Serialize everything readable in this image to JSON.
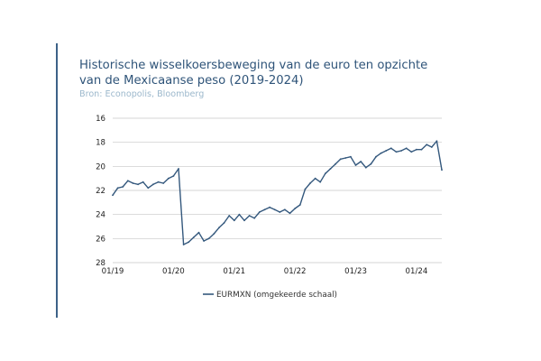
{
  "page": {
    "title_lines": [
      "Historische wisselkoersbeweging van de euro ten opzichte",
      "van de Mexicaanse peso (2019-2024)"
    ],
    "source": "Bron: Econopolis, Bloomberg"
  },
  "colors": {
    "accent_bar": "#3d6288",
    "title": "#2f5479",
    "source": "#9cb8cc",
    "series_line": "#34587d",
    "grid": "#c8c8c8"
  },
  "chart_data": {
    "type": "line",
    "y_inverted": true,
    "ylim": [
      16,
      28
    ],
    "y_ticks": [
      16,
      18,
      20,
      22,
      24,
      26,
      28
    ],
    "x_ticks": [
      "01/19",
      "01/20",
      "01/21",
      "01/22",
      "01/23",
      "01/24"
    ],
    "x_range": [
      "2019-01",
      "2024-06"
    ],
    "grid": "horizontal",
    "legend": {
      "position": "bottom",
      "label": "EURMXN (omgekeerde schaal)"
    },
    "series": [
      {
        "name": "EURMXN (omgekeerde schaal)",
        "x": [
          "2019-01",
          "2019-02",
          "2019-03",
          "2019-04",
          "2019-05",
          "2019-06",
          "2019-07",
          "2019-08",
          "2019-09",
          "2019-10",
          "2019-11",
          "2019-12",
          "2020-01",
          "2020-02",
          "2020-03",
          "2020-04",
          "2020-05",
          "2020-06",
          "2020-07",
          "2020-08",
          "2020-09",
          "2020-10",
          "2020-11",
          "2020-12",
          "2021-01",
          "2021-02",
          "2021-03",
          "2021-04",
          "2021-05",
          "2021-06",
          "2021-07",
          "2021-08",
          "2021-09",
          "2021-10",
          "2021-11",
          "2021-12",
          "2022-01",
          "2022-02",
          "2022-03",
          "2022-04",
          "2022-05",
          "2022-06",
          "2022-07",
          "2022-08",
          "2022-09",
          "2022-10",
          "2022-11",
          "2022-12",
          "2023-01",
          "2023-02",
          "2023-03",
          "2023-04",
          "2023-05",
          "2023-06",
          "2023-07",
          "2023-08",
          "2023-09",
          "2023-10",
          "2023-11",
          "2023-12",
          "2024-01",
          "2024-02",
          "2024-03",
          "2024-04",
          "2024-05",
          "2024-06"
        ],
        "values": [
          22.4,
          21.8,
          21.7,
          21.2,
          21.4,
          21.5,
          21.3,
          21.8,
          21.5,
          21.3,
          21.4,
          21.0,
          20.8,
          20.2,
          26.5,
          26.3,
          25.9,
          25.5,
          26.2,
          26.0,
          25.6,
          25.1,
          24.7,
          24.1,
          24.5,
          24.0,
          24.5,
          24.1,
          24.3,
          23.8,
          23.6,
          23.4,
          23.6,
          23.8,
          23.6,
          23.9,
          23.5,
          23.2,
          21.9,
          21.4,
          21.0,
          21.3,
          20.6,
          20.2,
          19.8,
          19.4,
          19.3,
          19.2,
          19.9,
          19.6,
          20.1,
          19.8,
          19.2,
          18.9,
          18.7,
          18.5,
          18.8,
          18.7,
          18.5,
          18.8,
          18.6,
          18.6,
          18.2,
          18.4,
          17.9,
          20.3
        ]
      }
    ]
  }
}
